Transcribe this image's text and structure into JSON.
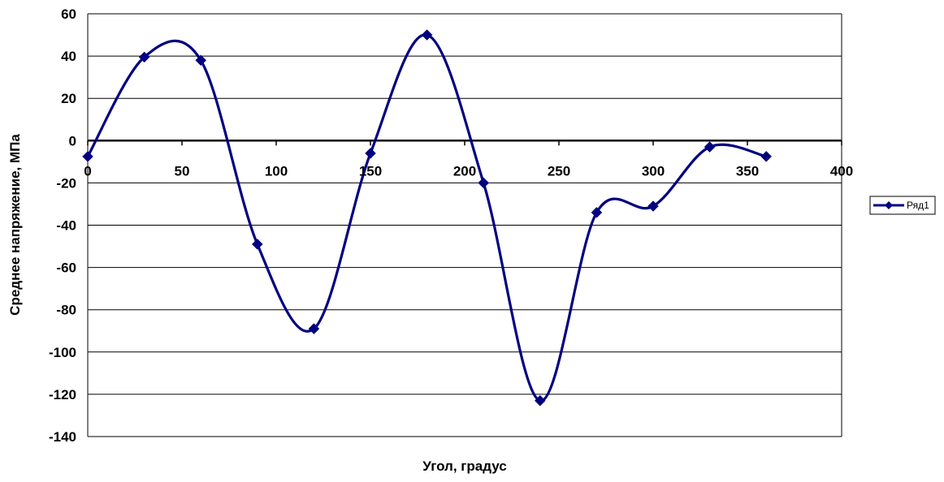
{
  "chart_data": {
    "type": "line",
    "smooth": true,
    "xlabel": "Угол, градус",
    "ylabel": "Среднее напряжение, МПа",
    "xlim": [
      0,
      400
    ],
    "ylim": [
      -140,
      60
    ],
    "x_ticks": [
      0,
      50,
      100,
      150,
      200,
      250,
      300,
      350,
      400
    ],
    "y_ticks": [
      60,
      40,
      20,
      0,
      -20,
      -40,
      -60,
      -80,
      -100,
      -120,
      -140
    ],
    "grid": "horizontal",
    "legend_position": "right",
    "series": [
      {
        "name": "Ряд1",
        "color": "#000080",
        "marker": "diamond",
        "x": [
          0,
          30,
          60,
          90,
          120,
          150,
          180,
          210,
          240,
          270,
          300,
          330,
          360
        ],
        "y": [
          -7.5,
          39.5,
          38,
          -49,
          -89,
          -6,
          50,
          -20,
          -123,
          -34,
          -31,
          -3,
          -7.5
        ]
      }
    ]
  }
}
